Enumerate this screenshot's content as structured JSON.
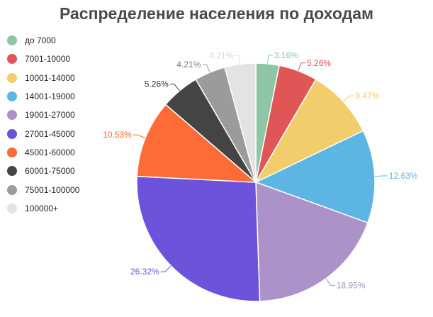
{
  "chart_data": {
    "type": "pie",
    "title": "Распределение населения по доходам",
    "legend_position": "left",
    "start_angle_deg": 0,
    "direction": "clockwise",
    "categories": [
      "до 7000",
      "7001-10000",
      "10001-14000",
      "14001-19000",
      "19001-27000",
      "27001-45000",
      "45001-60000",
      "60001-75000",
      "75001-100000",
      "100000+"
    ],
    "values": [
      3.16,
      5.26,
      9.47,
      12.63,
      18.95,
      26.32,
      10.53,
      5.26,
      4.21,
      4.21
    ],
    "labels": [
      "3.16%",
      "5.26%",
      "9.47%",
      "12.63%",
      "18.95%",
      "26.32%",
      "10.53%",
      "5.26%",
      "4.21%",
      "4.21%"
    ],
    "colors": [
      "#8ec5a5",
      "#e05656",
      "#f2cd6b",
      "#5db5e3",
      "#ab92c9",
      "#6c53da",
      "#fd6b36",
      "#444444",
      "#9b9b9b",
      "#e3e3e3"
    ],
    "label_colors": [
      "#8ec5a5",
      "#e05656",
      "#f2cd6b",
      "#5db5e3",
      "#ab92c9",
      "#6c53da",
      "#fd6b36",
      "#333333",
      "#777777",
      "#d8d8d8"
    ]
  }
}
